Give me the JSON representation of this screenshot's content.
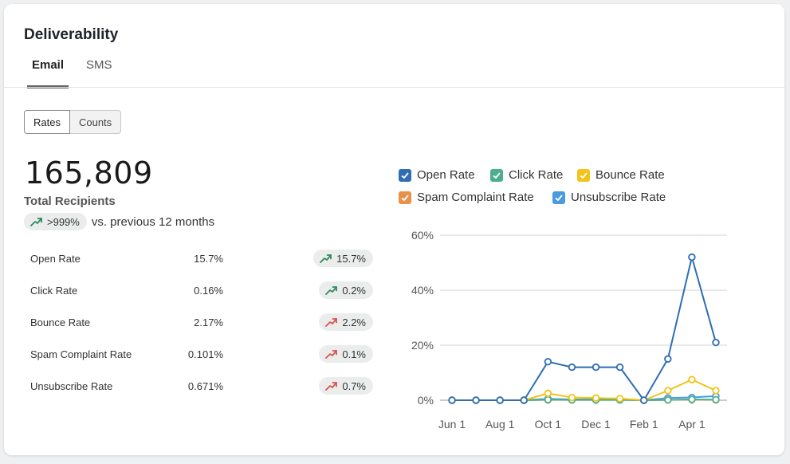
{
  "title": "Deliverability",
  "tabs": [
    {
      "label": "Email",
      "active": true
    },
    {
      "label": "SMS",
      "active": false
    }
  ],
  "toggle": {
    "rates_label": "Rates",
    "counts_label": "Counts",
    "selected": "Rates"
  },
  "summary": {
    "total": "165,809",
    "total_label": "Total Recipients",
    "change": ">999%",
    "change_text": "vs. previous 12 months"
  },
  "metrics": [
    {
      "label": "Open Rate",
      "value": "15.7%",
      "change": "15.7%",
      "trend": "up-good"
    },
    {
      "label": "Click Rate",
      "value": "0.16%",
      "change": "0.2%",
      "trend": "up-good"
    },
    {
      "label": "Bounce Rate",
      "value": "2.17%",
      "change": "2.2%",
      "trend": "up-bad"
    },
    {
      "label": "Spam Complaint Rate",
      "value": "0.101%",
      "change": "0.1%",
      "trend": "up-bad"
    },
    {
      "label": "Unsubscribe Rate",
      "value": "0.671%",
      "change": "0.7%",
      "trend": "up-bad"
    }
  ],
  "colors": {
    "good": "#2e8b57",
    "bad": "#d9534f"
  },
  "chart_data": {
    "type": "line",
    "legend_position": "top",
    "grid": true,
    "ylim": [
      0,
      60
    ],
    "y_ticks": [
      "0%",
      "20%",
      "40%",
      "60%"
    ],
    "y_tick_values": [
      0,
      20,
      40,
      60
    ],
    "x_tick_labels": [
      "Jun 1",
      "Aug 1",
      "Oct 1",
      "Dec 1",
      "Feb 1",
      "Apr 1"
    ],
    "x_tick_indices": [
      0,
      2,
      4,
      6,
      8,
      10
    ],
    "point_count": 12,
    "series": [
      {
        "name": "Open Rate",
        "color": "#2f6db5",
        "values": [
          0,
          0,
          0,
          0,
          14,
          12,
          12,
          12,
          0,
          15,
          52,
          21
        ]
      },
      {
        "name": "Click Rate",
        "color": "#4caf8a",
        "values": [
          0,
          0,
          0,
          0,
          0.2,
          0.1,
          0.1,
          0.1,
          0,
          0.1,
          0.3,
          0.2
        ]
      },
      {
        "name": "Bounce Rate",
        "color": "#f2c318",
        "values": [
          0,
          0,
          0,
          0,
          2.5,
          1,
          0.8,
          0.6,
          0,
          3.5,
          7.5,
          3.5
        ]
      },
      {
        "name": "Spam Complaint Rate",
        "color": "#e8914a",
        "values": [
          0,
          0,
          0,
          0,
          0.1,
          0.1,
          0.1,
          0.1,
          0,
          0.1,
          0.2,
          0.1
        ]
      },
      {
        "name": "Unsubscribe Rate",
        "color": "#4a9be0",
        "values": [
          0,
          0,
          0,
          0,
          0.5,
          0.3,
          0.3,
          0.3,
          0,
          0.8,
          1,
          1.5
        ]
      }
    ]
  }
}
